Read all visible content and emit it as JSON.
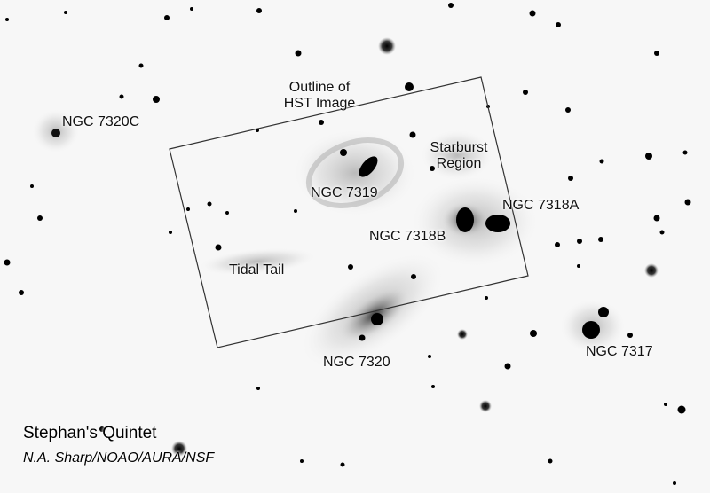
{
  "image": {
    "title": "Stephan's Quintet",
    "credit": "N.A. Sharp/NOAO/AURA/NSF"
  },
  "labels": {
    "outline_line1": "Outline of",
    "outline_line2": "HST Image",
    "starburst_line1": "Starburst",
    "starburst_line2": "Region",
    "ngc7320c": "NGC 7320C",
    "ngc7319": "NGC 7319",
    "ngc7318a": "NGC 7318A",
    "ngc7318b": "NGC 7318B",
    "tidal_tail": "Tidal Tail",
    "ngc7320": "NGC 7320",
    "ngc7317": "NGC 7317"
  },
  "colors": {
    "sky_background": "#f7f7f7",
    "galaxy_core": "#000000",
    "galaxy_halo": "#9a9a9a",
    "outline_stroke": "#333333"
  }
}
